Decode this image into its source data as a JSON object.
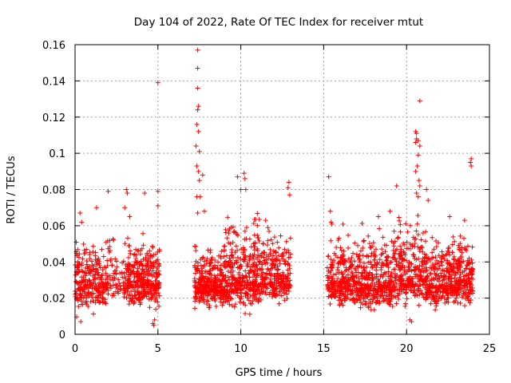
{
  "chart_data": {
    "type": "scatter",
    "title": "Day 104 of 2022, Rate Of TEC Index for receiver mtut",
    "xlabel": "GPS time / hours",
    "ylabel": "ROTI / TECUs",
    "xlim": [
      0,
      25
    ],
    "ylim": [
      0,
      0.16
    ],
    "x_ticks": [
      "0",
      "5",
      "10",
      "15",
      "20",
      "25"
    ],
    "y_ticks": [
      "0",
      "0.02",
      "0.04",
      "0.06",
      "0.08",
      "0.1",
      "0.12",
      "0.14",
      "0.16"
    ],
    "grid": true,
    "marker": "plus",
    "color": "#ff0000",
    "outliers": [
      {
        "x": 7.4,
        "y": 0.157
      },
      {
        "x": 7.4,
        "y": 0.147
      },
      {
        "x": 7.4,
        "y": 0.136
      },
      {
        "x": 7.45,
        "y": 0.126
      },
      {
        "x": 7.4,
        "y": 0.124
      },
      {
        "x": 7.35,
        "y": 0.116
      },
      {
        "x": 7.45,
        "y": 0.112
      },
      {
        "x": 7.3,
        "y": 0.104
      },
      {
        "x": 7.5,
        "y": 0.101
      },
      {
        "x": 7.35,
        "y": 0.093
      },
      {
        "x": 7.45,
        "y": 0.09
      },
      {
        "x": 7.7,
        "y": 0.088
      },
      {
        "x": 7.5,
        "y": 0.085
      },
      {
        "x": 7.35,
        "y": 0.076
      },
      {
        "x": 7.55,
        "y": 0.076
      },
      {
        "x": 7.4,
        "y": 0.067
      },
      {
        "x": 7.8,
        "y": 0.068
      },
      {
        "x": 5.0,
        "y": 0.139
      },
      {
        "x": 5.0,
        "y": 0.079
      },
      {
        "x": 5.0,
        "y": 0.071
      },
      {
        "x": 2.0,
        "y": 0.079
      },
      {
        "x": 3.1,
        "y": 0.08
      },
      {
        "x": 3.15,
        "y": 0.078
      },
      {
        "x": 4.2,
        "y": 0.078
      },
      {
        "x": 10.2,
        "y": 0.089
      },
      {
        "x": 10.25,
        "y": 0.086
      },
      {
        "x": 9.8,
        "y": 0.087
      },
      {
        "x": 10.0,
        "y": 0.08
      },
      {
        "x": 10.3,
        "y": 0.08
      },
      {
        "x": 12.9,
        "y": 0.084
      },
      {
        "x": 12.85,
        "y": 0.081
      },
      {
        "x": 12.95,
        "y": 0.077
      },
      {
        "x": 15.3,
        "y": 0.087
      },
      {
        "x": 15.4,
        "y": 0.068
      },
      {
        "x": 15.45,
        "y": 0.062
      },
      {
        "x": 20.8,
        "y": 0.129
      },
      {
        "x": 20.55,
        "y": 0.112
      },
      {
        "x": 20.6,
        "y": 0.111
      },
      {
        "x": 20.6,
        "y": 0.108
      },
      {
        "x": 20.55,
        "y": 0.106
      },
      {
        "x": 20.7,
        "y": 0.107
      },
      {
        "x": 20.8,
        "y": 0.104
      },
      {
        "x": 20.7,
        "y": 0.099
      },
      {
        "x": 20.65,
        "y": 0.093
      },
      {
        "x": 20.55,
        "y": 0.09
      },
      {
        "x": 20.75,
        "y": 0.085
      },
      {
        "x": 20.8,
        "y": 0.082
      },
      {
        "x": 20.6,
        "y": 0.078
      },
      {
        "x": 20.7,
        "y": 0.076
      },
      {
        "x": 19.4,
        "y": 0.082
      },
      {
        "x": 21.2,
        "y": 0.08
      },
      {
        "x": 21.3,
        "y": 0.074
      },
      {
        "x": 20.2,
        "y": 0.008
      },
      {
        "x": 20.3,
        "y": 0.007
      },
      {
        "x": 23.9,
        "y": 0.097
      },
      {
        "x": 23.85,
        "y": 0.095
      },
      {
        "x": 23.9,
        "y": 0.093
      },
      {
        "x": 4.7,
        "y": 0.006
      },
      {
        "x": 4.75,
        "y": 0.005
      },
      {
        "x": 4.8,
        "y": 0.008
      },
      {
        "x": 0.35,
        "y": 0.007
      },
      {
        "x": 23.5,
        "y": 0.063
      },
      {
        "x": 22.6,
        "y": 0.065
      },
      {
        "x": 19.0,
        "y": 0.068
      },
      {
        "x": 18.3,
        "y": 0.065
      },
      {
        "x": 11.5,
        "y": 0.063
      },
      {
        "x": 1.3,
        "y": 0.07
      },
      {
        "x": 0.3,
        "y": 0.067
      },
      {
        "x": 0.4,
        "y": 0.062
      },
      {
        "x": 3.0,
        "y": 0.07
      },
      {
        "x": 3.3,
        "y": 0.065
      }
    ],
    "clusters": [
      {
        "x_range": [
          0.0,
          2.0
        ],
        "y_range": [
          0.008,
          0.058
        ],
        "y_center": 0.028,
        "count": 270
      },
      {
        "x_range": [
          2.0,
          3.1
        ],
        "y_range": [
          0.015,
          0.06
        ],
        "y_center": 0.029,
        "count": 70
      },
      {
        "x_range": [
          3.1,
          5.1
        ],
        "y_range": [
          0.01,
          0.06
        ],
        "y_center": 0.03,
        "count": 330
      },
      {
        "x_range": [
          7.2,
          9.0
        ],
        "y_range": [
          0.012,
          0.052
        ],
        "y_center": 0.027,
        "count": 320
      },
      {
        "x_range": [
          9.0,
          11.2
        ],
        "y_range": [
          0.01,
          0.072
        ],
        "y_center": 0.029,
        "count": 380
      },
      {
        "x_range": [
          11.2,
          13.0
        ],
        "y_range": [
          0.014,
          0.07
        ],
        "y_center": 0.031,
        "count": 260
      },
      {
        "x_range": [
          15.2,
          17.2
        ],
        "y_range": [
          0.012,
          0.062
        ],
        "y_center": 0.029,
        "count": 300
      },
      {
        "x_range": [
          17.2,
          19.2
        ],
        "y_range": [
          0.01,
          0.065
        ],
        "y_center": 0.028,
        "count": 300
      },
      {
        "x_range": [
          19.2,
          21.2
        ],
        "y_range": [
          0.012,
          0.07
        ],
        "y_center": 0.031,
        "count": 300
      },
      {
        "x_range": [
          21.2,
          22.5
        ],
        "y_range": [
          0.012,
          0.06
        ],
        "y_center": 0.027,
        "count": 200
      },
      {
        "x_range": [
          22.5,
          24.0
        ],
        "y_range": [
          0.012,
          0.062
        ],
        "y_center": 0.03,
        "count": 260
      }
    ]
  }
}
